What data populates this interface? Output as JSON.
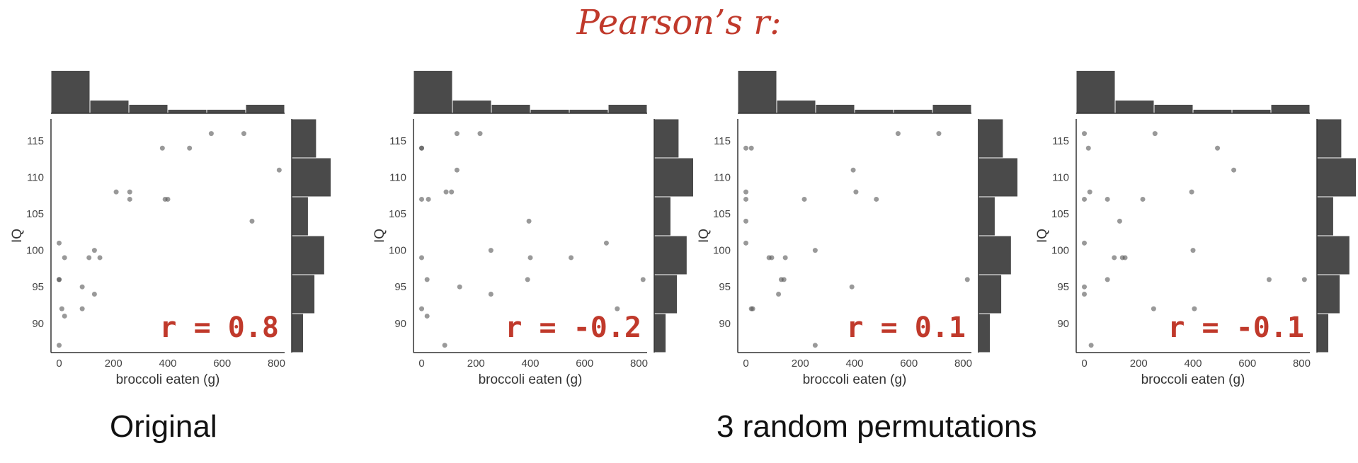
{
  "header": {
    "title": "Pearson’s r:"
  },
  "footer": {
    "left_caption": "Original",
    "right_caption": "3 random permutations"
  },
  "chart_data": [
    {
      "type": "scatter",
      "r_label": "r = 0.8",
      "xlabel": "broccoli eaten (g)",
      "ylabel": "IQ",
      "xlim": [
        -30,
        830
      ],
      "ylim": [
        86,
        118
      ],
      "xticks": [
        0,
        200,
        400,
        600,
        800
      ],
      "yticks": [
        90,
        95,
        100,
        105,
        110,
        115
      ],
      "x_hist": [
        6,
        1.8,
        1.2,
        0.5,
        0.5,
        1.2
      ],
      "y_hist": [
        1.5,
        2.4,
        1.0,
        2.0,
        1.4,
        0.7
      ],
      "points": [
        [
          0,
          87
        ],
        [
          20,
          91
        ],
        [
          10,
          92
        ],
        [
          85,
          92
        ],
        [
          0,
          96
        ],
        [
          0,
          96
        ],
        [
          85,
          95
        ],
        [
          130,
          94
        ],
        [
          0,
          101
        ],
        [
          20,
          99
        ],
        [
          110,
          99
        ],
        [
          130,
          100
        ],
        [
          150,
          99
        ],
        [
          210,
          108
        ],
        [
          260,
          108
        ],
        [
          260,
          107
        ],
        [
          390,
          107
        ],
        [
          400,
          107
        ],
        [
          380,
          114
        ],
        [
          480,
          114
        ],
        [
          560,
          116
        ],
        [
          680,
          116
        ],
        [
          710,
          104
        ],
        [
          810,
          111
        ]
      ]
    },
    {
      "type": "scatter",
      "r_label": "r = -0.2",
      "xlabel": "broccoli eaten (g)",
      "ylabel": "IQ",
      "xlim": [
        -30,
        830
      ],
      "ylim": [
        86,
        118
      ],
      "xticks": [
        0,
        200,
        400,
        600,
        800
      ],
      "yticks": [
        90,
        95,
        100,
        105,
        110,
        115
      ],
      "x_hist": [
        6,
        1.8,
        1.2,
        0.5,
        0.5,
        1.2
      ],
      "y_hist": [
        1.5,
        2.4,
        1.0,
        2.0,
        1.4,
        0.7
      ],
      "points": [
        [
          0,
          114
        ],
        [
          0,
          114
        ],
        [
          0,
          107
        ],
        [
          25,
          107
        ],
        [
          90,
          108
        ],
        [
          110,
          108
        ],
        [
          130,
          111
        ],
        [
          130,
          116
        ],
        [
          215,
          116
        ],
        [
          0,
          99
        ],
        [
          20,
          96
        ],
        [
          0,
          92
        ],
        [
          20,
          91
        ],
        [
          85,
          87
        ],
        [
          140,
          95
        ],
        [
          255,
          100
        ],
        [
          255,
          94
        ],
        [
          390,
          96
        ],
        [
          395,
          104
        ],
        [
          400,
          99
        ],
        [
          550,
          99
        ],
        [
          680,
          101
        ],
        [
          720,
          92
        ],
        [
          815,
          96
        ]
      ]
    },
    {
      "type": "scatter",
      "r_label": "r = 0.1",
      "xlabel": "broccoli eaten (g)",
      "ylabel": "IQ",
      "xlim": [
        -30,
        830
      ],
      "ylim": [
        86,
        118
      ],
      "xticks": [
        0,
        200,
        400,
        600,
        800
      ],
      "yticks": [
        90,
        95,
        100,
        105,
        110,
        115
      ],
      "x_hist": [
        6,
        1.8,
        1.2,
        0.5,
        0.5,
        1.2
      ],
      "y_hist": [
        1.5,
        2.4,
        1.0,
        2.0,
        1.4,
        0.7
      ],
      "points": [
        [
          0,
          114
        ],
        [
          20,
          114
        ],
        [
          0,
          108
        ],
        [
          0,
          107
        ],
        [
          0,
          104
        ],
        [
          0,
          101
        ],
        [
          20,
          92
        ],
        [
          25,
          92
        ],
        [
          85,
          99
        ],
        [
          95,
          99
        ],
        [
          120,
          94
        ],
        [
          130,
          96
        ],
        [
          140,
          96
        ],
        [
          145,
          99
        ],
        [
          215,
          107
        ],
        [
          255,
          100
        ],
        [
          255,
          87
        ],
        [
          390,
          95
        ],
        [
          395,
          111
        ],
        [
          405,
          108
        ],
        [
          480,
          107
        ],
        [
          560,
          116
        ],
        [
          710,
          116
        ],
        [
          815,
          96
        ]
      ]
    },
    {
      "type": "scatter",
      "r_label": "r = -0.1",
      "xlabel": "broccoli eaten (g)",
      "ylabel": "IQ",
      "xlim": [
        -30,
        830
      ],
      "ylim": [
        86,
        118
      ],
      "xticks": [
        0,
        200,
        400,
        600,
        800
      ],
      "yticks": [
        90,
        95,
        100,
        105,
        110,
        115
      ],
      "x_hist": [
        6,
        1.8,
        1.2,
        0.5,
        0.5,
        1.2
      ],
      "y_hist": [
        1.5,
        2.4,
        1.0,
        2.0,
        1.4,
        0.7
      ],
      "points": [
        [
          0,
          116
        ],
        [
          15,
          114
        ],
        [
          20,
          108
        ],
        [
          0,
          107
        ],
        [
          0,
          101
        ],
        [
          0,
          95
        ],
        [
          0,
          94
        ],
        [
          25,
          87
        ],
        [
          85,
          107
        ],
        [
          85,
          96
        ],
        [
          110,
          99
        ],
        [
          130,
          104
        ],
        [
          140,
          99
        ],
        [
          150,
          99
        ],
        [
          215,
          107
        ],
        [
          260,
          116
        ],
        [
          255,
          92
        ],
        [
          395,
          108
        ],
        [
          400,
          100
        ],
        [
          405,
          92
        ],
        [
          490,
          114
        ],
        [
          550,
          111
        ],
        [
          680,
          96
        ],
        [
          810,
          96
        ]
      ]
    }
  ]
}
